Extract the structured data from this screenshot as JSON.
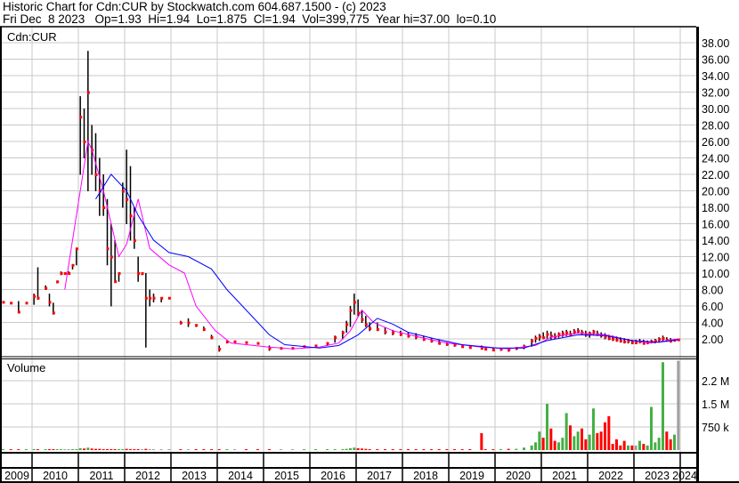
{
  "header": {
    "line1": "Historic Chart for Cdn:CUR by Stockwatch.com 604.687.1500 - (c) 2023",
    "line2": "Fri Dec  8 2023   Op=1.93  Hi=1.94  Lo=1.875  Cl=1.94  Vol=399,775  Year hi=37.00  lo=0.10"
  },
  "colors": {
    "bar": "#000000",
    "close_dot": "#ff0000",
    "ma_short": "#ff00ff",
    "ma_long": "#0000ff",
    "vol_up": "#44b044",
    "vol_down": "#ff0000",
    "vol_flat": "#a0a0a0",
    "grid": "#c8c8c8"
  },
  "chart_data": {
    "type": "line",
    "price_panel": {
      "label": "Cdn:CUR",
      "ylim": [
        0,
        39
      ],
      "y_ticks": [
        "2.00",
        "4.00",
        "6.00",
        "8.00",
        "10.00",
        "12.00",
        "14.00",
        "16.00",
        "18.00",
        "20.00",
        "22.00",
        "24.00",
        "26.00",
        "28.00",
        "30.00",
        "32.00",
        "34.00",
        "36.00",
        "38.00"
      ],
      "grid": true,
      "bars_fields": [
        "date",
        "high",
        "low",
        "close",
        "volume_k"
      ],
      "bars": [
        [
          "2009-01",
          4.6,
          4.4,
          4.5,
          10
        ],
        [
          "2009-03",
          6.5,
          6.3,
          6.4,
          5
        ],
        [
          "2009-05",
          6.5,
          6.4,
          6.5,
          5
        ],
        [
          "2009-07",
          6.4,
          6.3,
          6.4,
          5
        ],
        [
          "2009-09",
          6.6,
          5.2,
          5.3,
          8
        ],
        [
          "2009-11",
          6.5,
          6.4,
          6.4,
          5
        ],
        [
          "2010-01",
          7.5,
          6.2,
          7.2,
          10
        ],
        [
          "2010-02",
          10.7,
          6.8,
          7.0,
          20
        ],
        [
          "2010-04",
          8.5,
          8.0,
          8.2,
          8
        ],
        [
          "2010-05",
          7.5,
          6.0,
          6.5,
          10
        ],
        [
          "2010-06",
          6.4,
          5.0,
          5.2,
          10
        ],
        [
          "2010-07",
          9.0,
          8.8,
          9.0,
          8
        ],
        [
          "2010-08",
          10.2,
          9.8,
          10,
          10
        ],
        [
          "2010-09",
          10,
          10,
          10,
          5
        ],
        [
          "2010-10",
          10.2,
          9.9,
          10,
          6
        ],
        [
          "2010-11",
          11,
          10.5,
          11,
          10
        ],
        [
          "2010-12",
          13,
          11,
          13,
          20
        ],
        [
          "2011-01",
          31.5,
          22,
          29,
          60
        ],
        [
          "2011-02",
          30,
          24,
          26,
          50
        ],
        [
          "2011-03",
          37,
          20,
          32,
          80
        ],
        [
          "2011-04",
          28,
          22,
          25,
          50
        ],
        [
          "2011-05",
          27,
          20,
          22,
          40
        ],
        [
          "2011-06",
          24,
          17,
          20,
          40
        ],
        [
          "2011-07",
          22,
          17,
          18,
          30
        ],
        [
          "2011-08",
          19,
          11,
          13,
          30
        ],
        [
          "2011-09",
          16,
          6,
          12,
          30
        ],
        [
          "2011-10",
          14,
          9,
          9,
          20
        ],
        [
          "2011-11",
          10,
          9,
          10,
          15
        ],
        [
          "2011-12",
          21,
          18,
          20,
          30
        ],
        [
          "2012-01",
          25,
          16,
          19,
          40
        ],
        [
          "2012-02",
          23,
          14,
          17,
          30
        ],
        [
          "2012-03",
          18,
          13,
          14,
          20
        ],
        [
          "2012-04",
          12,
          9,
          10,
          15
        ],
        [
          "2012-05",
          10,
          9.8,
          10,
          10
        ],
        [
          "2012-06",
          10,
          1,
          7,
          40
        ],
        [
          "2012-07",
          8,
          6,
          7,
          15
        ],
        [
          "2012-08",
          7.5,
          6.5,
          7,
          10
        ],
        [
          "2012-10",
          7,
          6.5,
          7,
          8
        ],
        [
          "2012-12",
          7,
          6.9,
          7,
          5
        ],
        [
          "2013-03",
          4.2,
          3.8,
          4,
          8
        ],
        [
          "2013-05",
          4.5,
          3.5,
          4,
          10
        ],
        [
          "2013-07",
          3.8,
          3.5,
          3.7,
          8
        ],
        [
          "2013-09",
          3.5,
          3,
          3.2,
          8
        ],
        [
          "2013-11",
          2.5,
          2,
          2.2,
          8
        ],
        [
          "2014-01",
          1.2,
          0.5,
          0.8,
          8
        ],
        [
          "2014-03",
          1.8,
          1.5,
          1.7,
          6
        ],
        [
          "2014-05",
          1.8,
          1.6,
          1.7,
          5
        ],
        [
          "2014-08",
          1.7,
          1.5,
          1.6,
          5
        ],
        [
          "2014-11",
          1.6,
          1.4,
          1.5,
          5
        ],
        [
          "2015-02",
          1.2,
          0.6,
          0.9,
          6
        ],
        [
          "2015-05",
          1.0,
          0.8,
          0.9,
          5
        ],
        [
          "2015-08",
          1.0,
          0.8,
          0.9,
          5
        ],
        [
          "2015-11",
          1.2,
          1.0,
          1.1,
          5
        ],
        [
          "2016-02",
          1.3,
          1.0,
          1.2,
          8
        ],
        [
          "2016-05",
          1.6,
          1.2,
          1.5,
          10
        ],
        [
          "2016-07",
          2.4,
          1.6,
          2.2,
          15
        ],
        [
          "2016-09",
          3,
          2,
          2.8,
          30
        ],
        [
          "2016-10",
          4.2,
          2.8,
          3.8,
          40
        ],
        [
          "2016-11",
          6,
          3.5,
          5.5,
          60
        ],
        [
          "2016-12",
          7.5,
          5,
          6.5,
          80
        ],
        [
          "2017-01",
          6.8,
          4.8,
          5.2,
          60
        ],
        [
          "2017-02",
          5.5,
          4,
          4.4,
          50
        ],
        [
          "2017-03",
          4.8,
          3.5,
          3.8,
          40
        ],
        [
          "2017-04",
          4,
          3,
          3.3,
          30
        ],
        [
          "2017-06",
          4,
          3,
          3.2,
          30
        ],
        [
          "2017-08",
          3.4,
          2.6,
          2.9,
          25
        ],
        [
          "2017-10",
          3.1,
          2.5,
          2.8,
          25
        ],
        [
          "2017-12",
          3,
          2.4,
          2.6,
          25
        ],
        [
          "2018-02",
          2.8,
          2.2,
          2.4,
          25
        ],
        [
          "2018-04",
          2.7,
          2.0,
          2.3,
          20
        ],
        [
          "2018-06",
          2.4,
          1.8,
          2.0,
          20
        ],
        [
          "2018-08",
          2.1,
          1.6,
          1.8,
          20
        ],
        [
          "2018-10",
          1.9,
          1.4,
          1.5,
          20
        ],
        [
          "2018-12",
          1.6,
          1.2,
          1.4,
          20
        ],
        [
          "2019-02",
          1.5,
          1.1,
          1.3,
          20
        ],
        [
          "2019-04",
          1.3,
          1.0,
          1.1,
          20
        ],
        [
          "2019-06",
          1.2,
          0.9,
          1.0,
          30
        ],
        [
          "2019-09",
          1.2,
          0.8,
          0.9,
          550
        ],
        [
          "2019-10",
          1.0,
          0.7,
          0.8,
          25
        ],
        [
          "2019-12",
          0.9,
          0.6,
          0.7,
          20
        ],
        [
          "2020-02",
          0.9,
          0.6,
          0.8,
          30
        ],
        [
          "2020-04",
          0.9,
          0.5,
          0.7,
          40
        ],
        [
          "2020-06",
          1.0,
          0.7,
          0.9,
          40
        ],
        [
          "2020-08",
          1.3,
          0.8,
          1.1,
          80
        ],
        [
          "2020-10",
          2.0,
          1.1,
          1.8,
          150
        ],
        [
          "2020-11",
          2.4,
          1.6,
          2.1,
          250
        ],
        [
          "2020-12",
          2.6,
          1.8,
          2.3,
          600
        ],
        [
          "2021-01",
          2.8,
          2.0,
          2.2,
          400
        ],
        [
          "2021-02",
          3.0,
          2.1,
          2.6,
          1500
        ],
        [
          "2021-03",
          2.9,
          2.0,
          2.4,
          700
        ],
        [
          "2021-04",
          2.7,
          2.0,
          2.3,
          300
        ],
        [
          "2021-05",
          2.8,
          2.2,
          2.6,
          250
        ],
        [
          "2021-06",
          3.0,
          2.3,
          2.7,
          400
        ],
        [
          "2021-07",
          3.1,
          2.4,
          2.8,
          1200
        ],
        [
          "2021-08",
          3.0,
          2.4,
          2.6,
          800
        ],
        [
          "2021-09",
          3.2,
          2.6,
          2.9,
          450
        ],
        [
          "2021-10",
          3.3,
          2.7,
          3.0,
          600
        ],
        [
          "2021-11",
          3.1,
          2.5,
          2.8,
          700
        ],
        [
          "2021-12",
          3.0,
          2.3,
          2.6,
          350
        ],
        [
          "2022-01",
          2.9,
          2.2,
          2.7,
          500
        ],
        [
          "2022-02",
          3.1,
          2.5,
          2.9,
          1350
        ],
        [
          "2022-03",
          3.0,
          2.4,
          2.6,
          550
        ],
        [
          "2022-04",
          2.8,
          2.2,
          2.5,
          600
        ],
        [
          "2022-05",
          2.7,
          2.0,
          2.3,
          900
        ],
        [
          "2022-06",
          2.5,
          1.9,
          2.1,
          1100
        ],
        [
          "2022-07",
          2.4,
          1.8,
          2.0,
          200
        ],
        [
          "2022-08",
          2.3,
          1.7,
          1.9,
          350
        ],
        [
          "2022-09",
          2.2,
          1.6,
          1.8,
          150
        ],
        [
          "2022-10",
          2.1,
          1.5,
          1.7,
          300
        ],
        [
          "2022-11",
          2.0,
          1.5,
          1.8,
          150
        ],
        [
          "2022-12",
          1.9,
          1.4,
          1.6,
          150
        ],
        [
          "2023-01",
          1.9,
          1.4,
          1.6,
          150
        ],
        [
          "2023-02",
          2.0,
          1.5,
          1.7,
          300
        ],
        [
          "2023-03",
          1.9,
          1.4,
          1.5,
          200
        ],
        [
          "2023-04",
          1.8,
          1.4,
          1.6,
          150
        ],
        [
          "2023-05",
          1.9,
          1.5,
          1.7,
          1400
        ],
        [
          "2023-06",
          2.0,
          1.5,
          1.8,
          250
        ],
        [
          "2023-07",
          2.2,
          1.6,
          2.0,
          400
        ],
        [
          "2023-08",
          2.4,
          1.7,
          2.1,
          2850
        ],
        [
          "2023-09",
          2.2,
          1.7,
          1.9,
          600
        ],
        [
          "2023-10",
          2.1,
          1.6,
          1.8,
          350
        ],
        [
          "2023-11",
          2.0,
          1.7,
          1.9,
          500
        ],
        [
          "2023-12",
          1.94,
          1.875,
          1.94,
          2900
        ]
      ],
      "ma_short": [
        [
          "2010-09",
          8
        ],
        [
          "2011-03",
          26
        ],
        [
          "2011-04",
          25
        ],
        [
          "2011-07",
          20
        ],
        [
          "2011-10",
          14
        ],
        [
          "2011-11",
          12
        ],
        [
          "2012-01",
          13.5
        ],
        [
          "2012-04",
          19
        ],
        [
          "2012-07",
          13
        ],
        [
          "2012-12",
          11
        ],
        [
          "2013-04",
          10
        ],
        [
          "2013-07",
          6
        ],
        [
          "2013-12",
          3
        ],
        [
          "2014-04",
          1.5
        ],
        [
          "2015-02",
          1
        ],
        [
          "2015-08",
          0.8
        ],
        [
          "2016-03",
          1
        ],
        [
          "2016-08",
          1.5
        ],
        [
          "2016-11",
          3
        ],
        [
          "2017-02",
          5.5
        ],
        [
          "2017-05",
          4
        ],
        [
          "2017-10",
          3
        ],
        [
          "2018-05",
          2.2
        ],
        [
          "2018-12",
          1.5
        ],
        [
          "2019-09",
          1
        ],
        [
          "2020-04",
          0.8
        ],
        [
          "2020-11",
          1.2
        ],
        [
          "2021-03",
          2.2
        ],
        [
          "2021-10",
          2.7
        ],
        [
          "2022-05",
          2.5
        ],
        [
          "2022-12",
          1.8
        ],
        [
          "2023-05",
          1.5
        ],
        [
          "2023-12",
          2.0
        ]
      ],
      "ma_long": [
        [
          "2011-05",
          19
        ],
        [
          "2011-09",
          22
        ],
        [
          "2012-01",
          20
        ],
        [
          "2012-04",
          17
        ],
        [
          "2012-08",
          14
        ],
        [
          "2012-12",
          12.5
        ],
        [
          "2013-05",
          12
        ],
        [
          "2013-11",
          10.5
        ],
        [
          "2014-03",
          8
        ],
        [
          "2014-07",
          6
        ],
        [
          "2015-02",
          2.5
        ],
        [
          "2015-06",
          1.3
        ],
        [
          "2016-03",
          0.9
        ],
        [
          "2016-08",
          1.2
        ],
        [
          "2017-01",
          2.5
        ],
        [
          "2017-06",
          4.5
        ],
        [
          "2017-10",
          3.8
        ],
        [
          "2018-02",
          2.8
        ],
        [
          "2018-09",
          2.0
        ],
        [
          "2019-04",
          1.3
        ],
        [
          "2020-01",
          0.9
        ],
        [
          "2020-08",
          0.9
        ],
        [
          "2021-02",
          1.8
        ],
        [
          "2021-10",
          2.5
        ],
        [
          "2022-05",
          2.4
        ],
        [
          "2022-12",
          1.8
        ],
        [
          "2023-07",
          1.6
        ],
        [
          "2023-12",
          1.9
        ]
      ]
    },
    "volume_panel": {
      "label": "Volume",
      "y_ticks": [
        "750 k",
        "1.5 M",
        "2.2 M"
      ]
    },
    "x_ticks": [
      "2009",
      "2010",
      "2011",
      "2012",
      "2013",
      "2014",
      "2015",
      "2016",
      "2017",
      "2018",
      "2019",
      "2020",
      "2021",
      "2022",
      "2023",
      "2024"
    ]
  }
}
